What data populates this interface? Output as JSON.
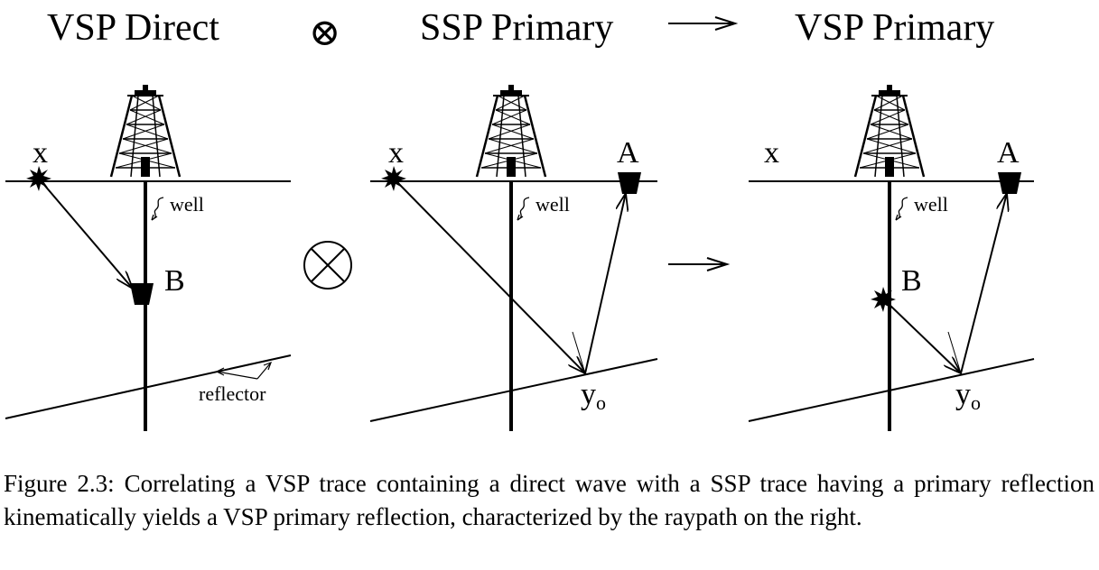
{
  "headings": {
    "left": "VSP Direct",
    "center": "SSP Primary",
    "right": "VSP Primary",
    "operator": "⊗"
  },
  "labels": {
    "source": "x",
    "receiver_b": "B",
    "receiver_a": "A",
    "well": "well",
    "reflector": "reflector",
    "reflection_point": "y",
    "reflection_point_sub": "o"
  },
  "caption": "Figure 2.3:  Correlating a VSP trace containing a direct wave with a SSP trace having a primary reflection kinematically yields a VSP primary reflection, characterized by the raypath on the right."
}
